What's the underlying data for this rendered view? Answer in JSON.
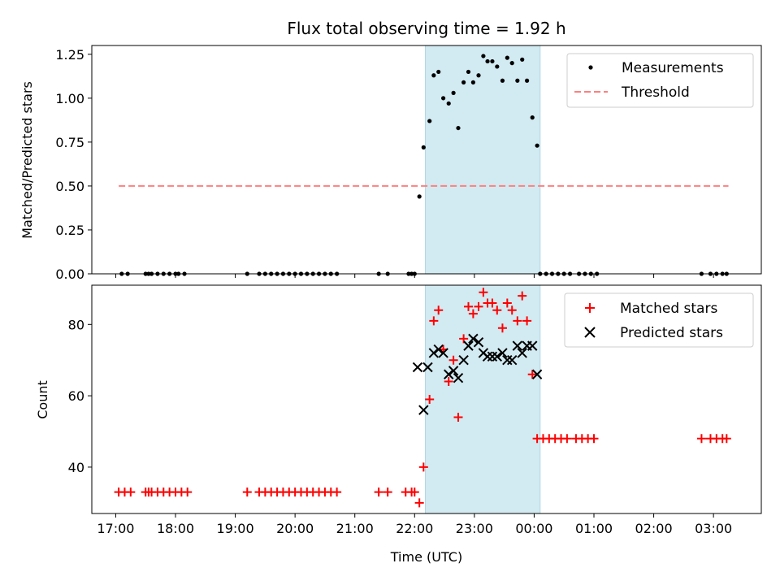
{
  "chart_data": {
    "type": "scatter",
    "title": "Flux total observing time = 1.92 h",
    "xlabel": "Time (UTC)",
    "x_unit": "hours since 17:00 UTC",
    "xlim": [
      -0.4,
      10.8
    ],
    "x_ticks": [
      {
        "x": 0,
        "label": "17:00"
      },
      {
        "x": 1,
        "label": "18:00"
      },
      {
        "x": 2,
        "label": "19:00"
      },
      {
        "x": 3,
        "label": "20:00"
      },
      {
        "x": 4,
        "label": "21:00"
      },
      {
        "x": 5,
        "label": "22:00"
      },
      {
        "x": 6,
        "label": "23:00"
      },
      {
        "x": 7,
        "label": "00:00"
      },
      {
        "x": 8,
        "label": "01:00"
      },
      {
        "x": 9,
        "label": "02:00"
      },
      {
        "x": 10,
        "label": "03:00"
      }
    ],
    "highlight_span": {
      "x_start": 5.18,
      "x_end": 7.1,
      "color": "#add8e6"
    },
    "panels": [
      {
        "id": "ratio",
        "ylabel": "Matched/Predicted stars",
        "ylim": [
          0,
          1.3
        ],
        "y_ticks": [
          {
            "y": 0,
            "label": "0.00"
          },
          {
            "y": 0.25,
            "label": "0.25"
          },
          {
            "y": 0.5,
            "label": "0.50"
          },
          {
            "y": 0.75,
            "label": "0.75"
          },
          {
            "y": 1.0,
            "label": "1.00"
          },
          {
            "y": 1.25,
            "label": "1.25"
          }
        ],
        "legend_position": "upper-right",
        "series": [
          {
            "name": "Measurements",
            "kind": "dot",
            "color": "#000000",
            "points": [
              [
                0.1,
                0
              ],
              [
                0.2,
                0
              ],
              [
                0.5,
                0
              ],
              [
                0.55,
                0
              ],
              [
                0.6,
                0
              ],
              [
                0.7,
                0
              ],
              [
                0.8,
                0
              ],
              [
                0.9,
                0
              ],
              [
                1.0,
                0
              ],
              [
                1.05,
                0
              ],
              [
                1.15,
                0
              ],
              [
                2.2,
                0
              ],
              [
                2.4,
                0
              ],
              [
                2.5,
                0
              ],
              [
                2.6,
                0
              ],
              [
                2.7,
                0
              ],
              [
                2.8,
                0
              ],
              [
                2.9,
                0
              ],
              [
                3.0,
                0
              ],
              [
                3.1,
                0
              ],
              [
                3.2,
                0
              ],
              [
                3.3,
                0
              ],
              [
                3.4,
                0
              ],
              [
                3.5,
                0
              ],
              [
                3.6,
                0
              ],
              [
                3.7,
                0
              ],
              [
                4.4,
                0
              ],
              [
                4.55,
                0
              ],
              [
                4.9,
                0
              ],
              [
                4.95,
                0
              ],
              [
                5.0,
                0
              ],
              [
                5.08,
                0.44
              ],
              [
                5.15,
                0.72
              ],
              [
                5.25,
                0.87
              ],
              [
                5.32,
                1.13
              ],
              [
                5.4,
                1.15
              ],
              [
                5.48,
                1.0
              ],
              [
                5.57,
                0.97
              ],
              [
                5.65,
                1.03
              ],
              [
                5.73,
                0.83
              ],
              [
                5.82,
                1.09
              ],
              [
                5.9,
                1.15
              ],
              [
                5.98,
                1.09
              ],
              [
                6.07,
                1.13
              ],
              [
                6.15,
                1.24
              ],
              [
                6.22,
                1.21
              ],
              [
                6.3,
                1.21
              ],
              [
                6.38,
                1.18
              ],
              [
                6.47,
                1.1
              ],
              [
                6.55,
                1.23
              ],
              [
                6.63,
                1.2
              ],
              [
                6.72,
                1.1
              ],
              [
                6.8,
                1.22
              ],
              [
                6.88,
                1.1
              ],
              [
                6.97,
                0.89
              ],
              [
                7.05,
                0.73
              ],
              [
                7.1,
                0
              ],
              [
                7.2,
                0
              ],
              [
                7.3,
                0
              ],
              [
                7.4,
                0
              ],
              [
                7.5,
                0
              ],
              [
                7.6,
                0
              ],
              [
                7.75,
                0
              ],
              [
                7.85,
                0
              ],
              [
                7.95,
                0
              ],
              [
                8.05,
                0
              ],
              [
                9.8,
                0
              ],
              [
                9.95,
                0
              ],
              [
                10.05,
                0
              ],
              [
                10.15,
                0
              ],
              [
                10.22,
                0
              ]
            ]
          },
          {
            "name": "Threshold",
            "kind": "dashed-line",
            "color": "#ff7f7f",
            "points": [
              [
                0.05,
                0.5
              ],
              [
                10.25,
                0.5
              ]
            ]
          }
        ]
      },
      {
        "id": "counts",
        "ylabel": "Count",
        "ylim": [
          27,
          91
        ],
        "y_ticks": [
          {
            "y": 40,
            "label": "40"
          },
          {
            "y": 60,
            "label": "60"
          },
          {
            "y": 80,
            "label": "80"
          }
        ],
        "legend_position": "upper-right",
        "series": [
          {
            "name": "Matched stars",
            "kind": "plus",
            "color": "#ff0000",
            "points": [
              [
                0.05,
                33
              ],
              [
                0.15,
                33
              ],
              [
                0.25,
                33
              ],
              [
                0.5,
                33
              ],
              [
                0.55,
                33
              ],
              [
                0.6,
                33
              ],
              [
                0.7,
                33
              ],
              [
                0.8,
                33
              ],
              [
                0.9,
                33
              ],
              [
                1.0,
                33
              ],
              [
                1.1,
                33
              ],
              [
                1.2,
                33
              ],
              [
                2.2,
                33
              ],
              [
                2.4,
                33
              ],
              [
                2.5,
                33
              ],
              [
                2.6,
                33
              ],
              [
                2.7,
                33
              ],
              [
                2.8,
                33
              ],
              [
                2.9,
                33
              ],
              [
                3.0,
                33
              ],
              [
                3.1,
                33
              ],
              [
                3.2,
                33
              ],
              [
                3.3,
                33
              ],
              [
                3.4,
                33
              ],
              [
                3.5,
                33
              ],
              [
                3.6,
                33
              ],
              [
                3.7,
                33
              ],
              [
                4.4,
                33
              ],
              [
                4.55,
                33
              ],
              [
                4.85,
                33
              ],
              [
                4.95,
                33
              ],
              [
                5.0,
                33
              ],
              [
                5.08,
                30
              ],
              [
                5.15,
                40
              ],
              [
                5.25,
                59
              ],
              [
                5.32,
                81
              ],
              [
                5.4,
                84
              ],
              [
                5.48,
                73
              ],
              [
                5.57,
                64
              ],
              [
                5.65,
                70
              ],
              [
                5.73,
                54
              ],
              [
                5.82,
                76
              ],
              [
                5.9,
                85
              ],
              [
                5.98,
                83
              ],
              [
                6.07,
                85
              ],
              [
                6.15,
                89
              ],
              [
                6.22,
                86
              ],
              [
                6.3,
                86
              ],
              [
                6.38,
                84
              ],
              [
                6.47,
                79
              ],
              [
                6.55,
                86
              ],
              [
                6.63,
                84
              ],
              [
                6.72,
                81
              ],
              [
                6.8,
                88
              ],
              [
                6.88,
                81
              ],
              [
                6.97,
                66
              ],
              [
                7.05,
                48
              ],
              [
                7.15,
                48
              ],
              [
                7.25,
                48
              ],
              [
                7.35,
                48
              ],
              [
                7.45,
                48
              ],
              [
                7.55,
                48
              ],
              [
                7.7,
                48
              ],
              [
                7.8,
                48
              ],
              [
                7.9,
                48
              ],
              [
                8.0,
                48
              ],
              [
                9.8,
                48
              ],
              [
                9.95,
                48
              ],
              [
                10.05,
                48
              ],
              [
                10.15,
                48
              ],
              [
                10.22,
                48
              ]
            ]
          },
          {
            "name": "Predicted stars",
            "kind": "cross",
            "color": "#000000",
            "points": [
              [
                5.05,
                68
              ],
              [
                5.15,
                56
              ],
              [
                5.22,
                68
              ],
              [
                5.32,
                72
              ],
              [
                5.4,
                73
              ],
              [
                5.48,
                72
              ],
              [
                5.57,
                66
              ],
              [
                5.65,
                67
              ],
              [
                5.73,
                65
              ],
              [
                5.82,
                70
              ],
              [
                5.9,
                74
              ],
              [
                5.98,
                76
              ],
              [
                6.07,
                75
              ],
              [
                6.15,
                72
              ],
              [
                6.22,
                71
              ],
              [
                6.3,
                71
              ],
              [
                6.38,
                71
              ],
              [
                6.47,
                72
              ],
              [
                6.55,
                70
              ],
              [
                6.63,
                70
              ],
              [
                6.72,
                74
              ],
              [
                6.8,
                72
              ],
              [
                6.88,
                74
              ],
              [
                6.97,
                74
              ],
              [
                7.05,
                66
              ]
            ]
          }
        ]
      }
    ]
  }
}
